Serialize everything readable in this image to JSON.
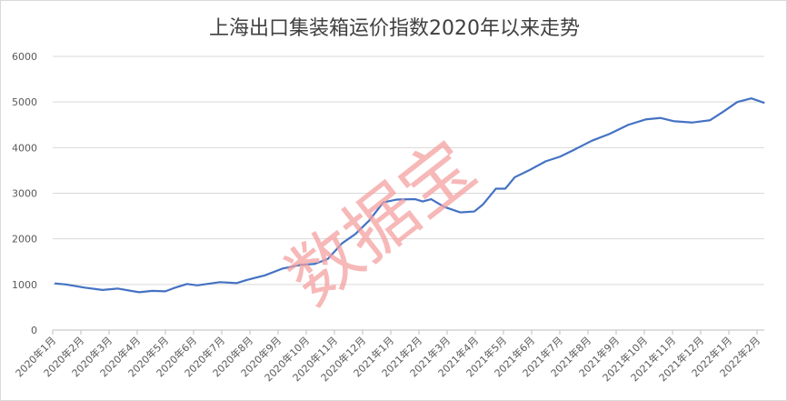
{
  "chart_data": {
    "type": "line",
    "title": "上海出口集装箱运价指数2020年以来走势",
    "watermark": "数据宝",
    "xlabel": "",
    "ylabel": "",
    "ylim": [
      0,
      6000
    ],
    "yticks": [
      "0",
      "1000",
      "2000",
      "3000",
      "4000",
      "5000",
      "6000"
    ],
    "xtick_labels": [
      "2020年1月",
      "2020年2月",
      "2020年3月",
      "2020年4月",
      "2020年5月",
      "2020年6月",
      "2020年7月",
      "2020年8月",
      "2020年9月",
      "2020年10月",
      "2020年11月",
      "2020年12月",
      "2021年1月",
      "2021年2月",
      "2021年3月",
      "2021年4月",
      "2021年5月",
      "2021年6月",
      "2021年7月",
      "2021年8月",
      "2021年9月",
      "2021年10月",
      "2021年11月",
      "2021年12月",
      "2022年1月",
      "2022年2月"
    ],
    "grid": true,
    "legend": "none",
    "line_color": "#4472c4",
    "watermark_color": "#f4a0a0",
    "series": [
      {
        "x": [
          "2020-01-03",
          "2020-01-15",
          "2020-02-05",
          "2020-02-24",
          "2020-03-10",
          "2020-04-03",
          "2020-04-17",
          "2020-05-01",
          "2020-05-10",
          "2020-05-24",
          "2020-06-05",
          "2020-06-29",
          "2020-07-17",
          "2020-07-28",
          "2020-08-17",
          "2020-09-06",
          "2020-09-25",
          "2020-10-10",
          "2020-10-24",
          "2020-11-09",
          "2020-11-23",
          "2020-12-08",
          "2020-12-23",
          "2021-01-07",
          "2021-01-27",
          "2021-02-05",
          "2021-02-14",
          "2021-02-28",
          "2021-03-15",
          "2021-03-30",
          "2021-04-09",
          "2021-04-23",
          "2021-05-03",
          "2021-05-13",
          "2021-05-28",
          "2021-06-16",
          "2021-07-01",
          "2021-07-16",
          "2021-08-05",
          "2021-08-24",
          "2021-09-14",
          "2021-10-03",
          "2021-10-18",
          "2021-11-02",
          "2021-11-22",
          "2021-12-11",
          "2021-12-26",
          "2022-01-10",
          "2022-01-25",
          "2022-02-09"
        ],
        "values": [
          1023,
          1000,
          930,
          880,
          910,
          830,
          860,
          850,
          920,
          1010,
          980,
          1050,
          1030,
          1100,
          1200,
          1350,
          1430,
          1450,
          1560,
          1900,
          2100,
          2400,
          2800,
          2860,
          2870,
          2820,
          2870,
          2700,
          2580,
          2600,
          2750,
          3100,
          3100,
          3350,
          3500,
          3700,
          3800,
          3950,
          4150,
          4300,
          4500,
          4620,
          4650,
          4580,
          4550,
          4600,
          4800,
          5000,
          5080,
          4980
        ]
      }
    ]
  }
}
